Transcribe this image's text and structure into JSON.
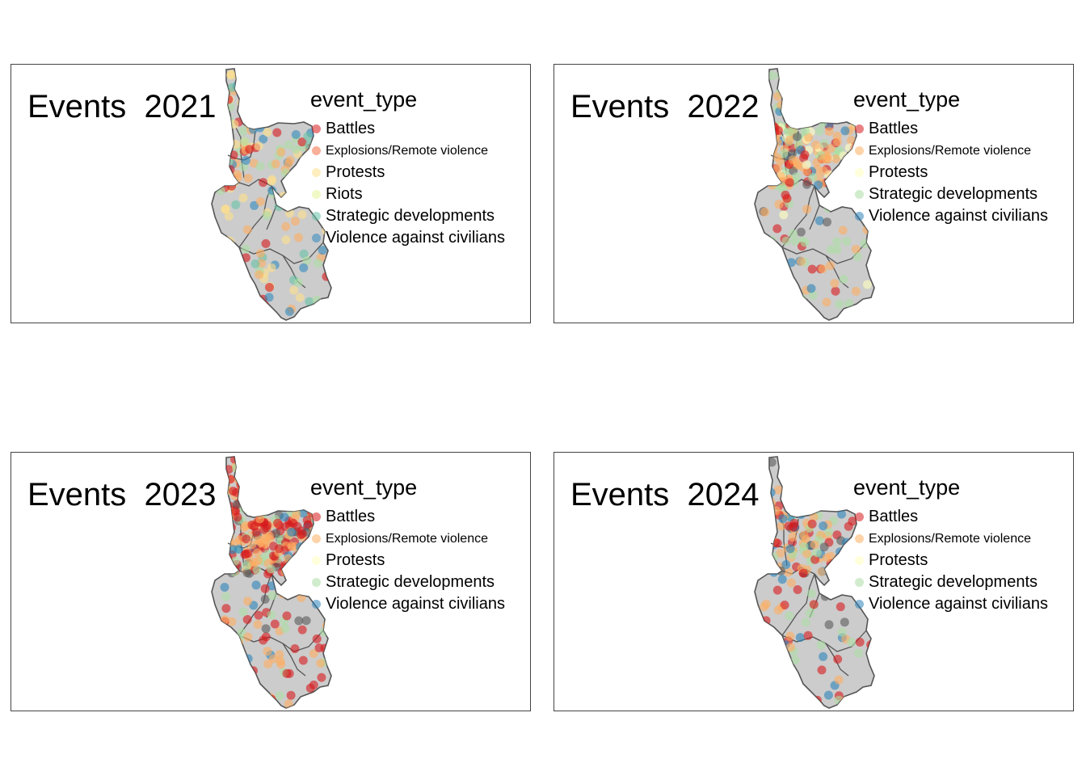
{
  "colors": {
    "region_fill": "#cccccc",
    "border": "#555555",
    "panel_border": "#444444",
    "battles": "#d7191c",
    "explosions": "#fdae61",
    "protests": "#ffffbf",
    "riots": "#fee08b",
    "strategic": "#abdda4",
    "violence": "#2b83ba"
  },
  "panels": [
    {
      "title": "Events  2021",
      "legend_title": "event_type",
      "legend": [
        {
          "label": "Battles",
          "color": "#d7191c"
        },
        {
          "label": "Explosions/Remote violence",
          "color": "#f46d43"
        },
        {
          "label": "Protests",
          "color": "#fee08b"
        },
        {
          "label": "Riots",
          "color": "#e6f598"
        },
        {
          "label": "Strategic developments",
          "color": "#66c2a5"
        },
        {
          "label": "Violence against civilians",
          "color": "#3288bd"
        }
      ]
    },
    {
      "title": "Events  2022",
      "legend_title": "event_type",
      "legend": [
        {
          "label": "Battles",
          "color": "#d7191c"
        },
        {
          "label": "Explosions/Remote violence",
          "color": "#fdae61"
        },
        {
          "label": "Protests",
          "color": "#ffffbf"
        },
        {
          "label": "Strategic developments",
          "color": "#abdda4"
        },
        {
          "label": "Violence against civilians",
          "color": "#2b83ba"
        }
      ]
    },
    {
      "title": "Events  2023",
      "legend_title": "event_type",
      "legend": [
        {
          "label": "Battles",
          "color": "#d7191c"
        },
        {
          "label": "Explosions/Remote violence",
          "color": "#fdae61"
        },
        {
          "label": "Protests",
          "color": "#ffffbf"
        },
        {
          "label": "Strategic developments",
          "color": "#abdda4"
        },
        {
          "label": "Violence against civilians",
          "color": "#2b83ba"
        }
      ]
    },
    {
      "title": "Events  2024",
      "legend_title": "event_type",
      "legend": [
        {
          "label": "Battles",
          "color": "#d7191c"
        },
        {
          "label": "Explosions/Remote violence",
          "color": "#fdae61"
        },
        {
          "label": "Protests",
          "color": "#ffffbf"
        },
        {
          "label": "Strategic developments",
          "color": "#abdda4"
        },
        {
          "label": "Violence against civilians",
          "color": "#2b83ba"
        }
      ]
    }
  ]
}
